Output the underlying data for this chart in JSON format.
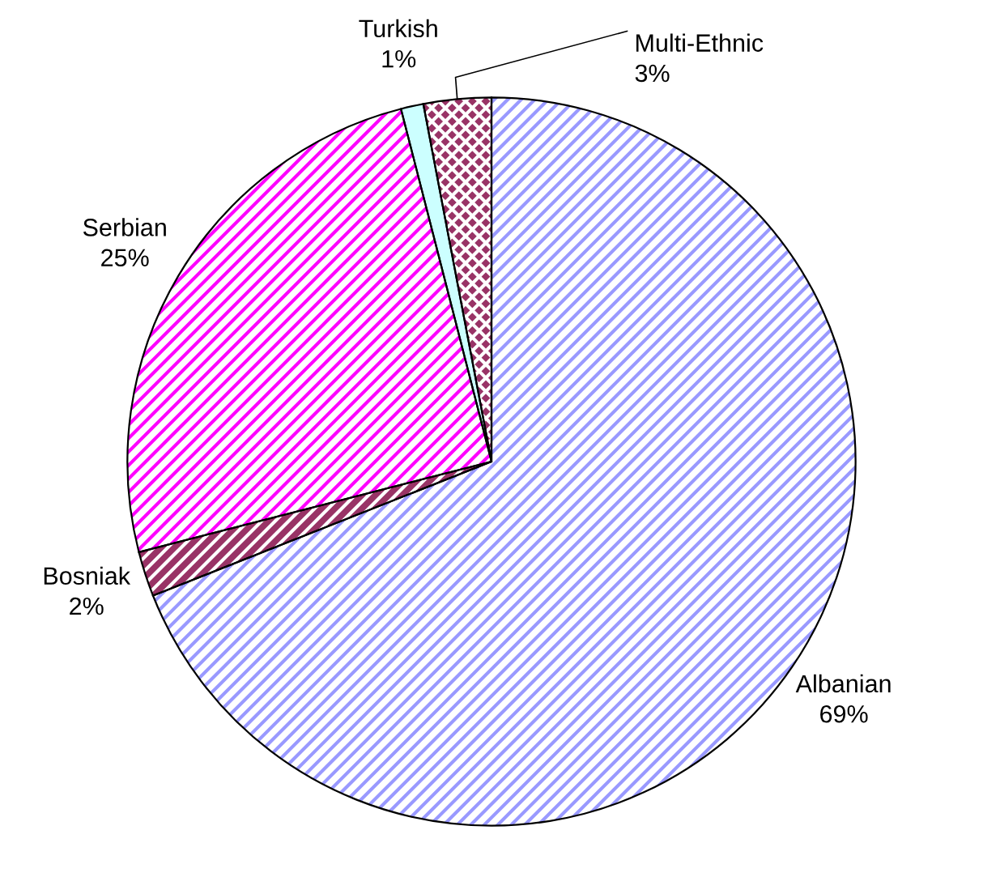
{
  "chart_data": {
    "type": "pie",
    "categories": [
      "Albanian",
      "Bosniak",
      "Serbian",
      "Turkish",
      "Multi-Ethnic"
    ],
    "values": [
      69,
      2,
      25,
      1,
      3
    ],
    "value_labels": [
      "69%",
      "2%",
      "25%",
      "1%",
      "3%"
    ],
    "colors": [
      "#9999ff",
      "#993366",
      "#ff00ff",
      "#ccffff",
      "#993366"
    ]
  }
}
